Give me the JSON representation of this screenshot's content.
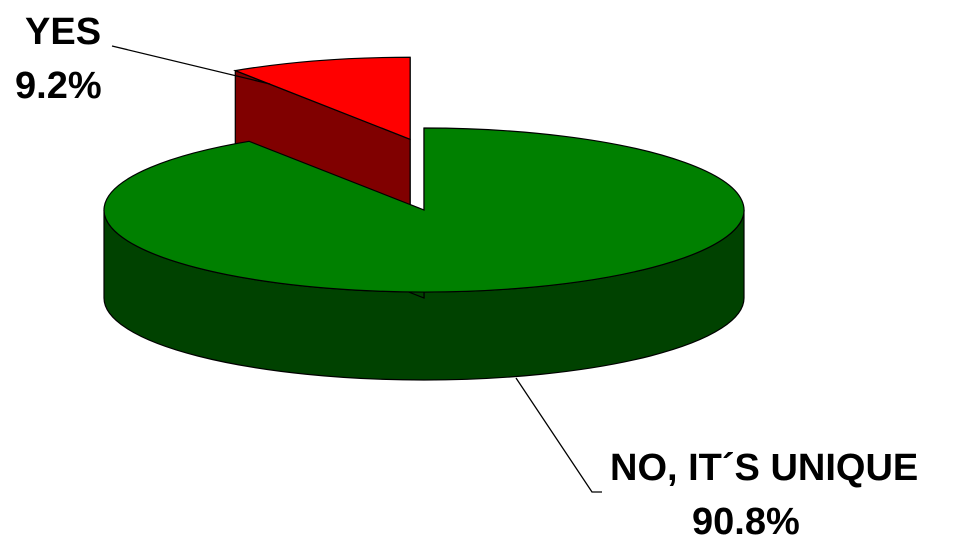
{
  "chart_data": {
    "type": "pie",
    "style": "3d-exploded",
    "title": "",
    "slices": [
      {
        "label": "NO, IT´S UNIQUE",
        "value": 90.8,
        "value_label": "90.8%",
        "color_top": "#008000",
        "color_side": "#004200"
      },
      {
        "label": "YES",
        "value": 9.2,
        "value_label": "9.2%",
        "color_top": "#ff0000",
        "color_side": "#800000",
        "exploded": true
      }
    ],
    "legend": "none"
  }
}
